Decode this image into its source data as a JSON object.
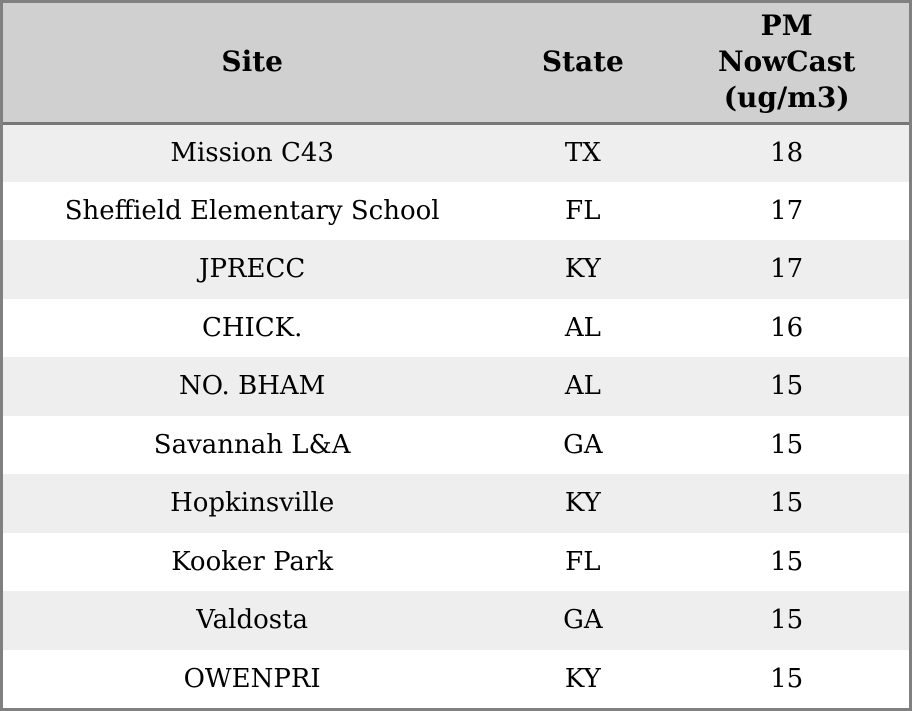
{
  "colors": {
    "border": "#808080",
    "header_bg": "#d0d0d0",
    "header_divider": "#777777",
    "row_alt_bg": "#eeeeee",
    "row_bg": "#ffffff",
    "text": "#000000"
  },
  "ui": {
    "columns": [
      {
        "id": "site",
        "lines": [
          "Site"
        ]
      },
      {
        "id": "state",
        "lines": [
          "State"
        ]
      },
      {
        "id": "pm_nowcast",
        "lines": [
          "PM",
          "NowCast",
          "(ug/m3)"
        ]
      }
    ]
  },
  "chart_data": {
    "type": "table",
    "columns": [
      "Site",
      "State",
      "PM NowCast (ug/m3)"
    ],
    "rows": [
      [
        "Mission C43",
        "TX",
        18
      ],
      [
        "Sheffield Elementary School",
        "FL",
        17
      ],
      [
        "JPRECC",
        "KY",
        17
      ],
      [
        "CHICK.",
        "AL",
        16
      ],
      [
        "NO. BHAM",
        "AL",
        15
      ],
      [
        "Savannah L&A",
        "GA",
        15
      ],
      [
        "Hopkinsville",
        "KY",
        15
      ],
      [
        "Kooker Park",
        "FL",
        15
      ],
      [
        "Valdosta",
        "GA",
        15
      ],
      [
        "OWENPRI",
        "KY",
        15
      ]
    ]
  }
}
